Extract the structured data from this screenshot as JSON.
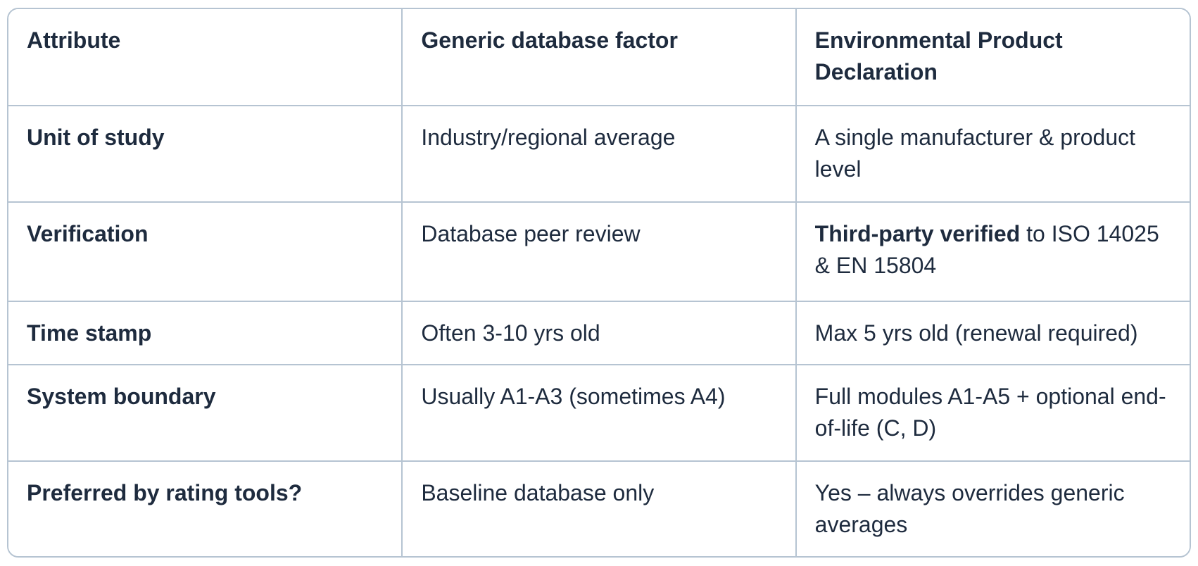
{
  "table": {
    "colors": {
      "text": "#1e2b3e",
      "border": "#b6c4d2",
      "background": "#ffffff"
    },
    "columns": [
      {
        "label": "Attribute"
      },
      {
        "label": "Generic database factor"
      },
      {
        "label": "Environmental Product Declaration"
      }
    ],
    "rows": [
      {
        "attribute": "Unit of study",
        "generic": "Industry/regional average",
        "epd": "A single manufacturer & product level"
      },
      {
        "attribute": "Verification",
        "generic": "Database peer review",
        "epd_bold": "Third-party verified",
        "epd_rest": " to ISO 14025 & EN 15804"
      },
      {
        "attribute": "Time stamp",
        "generic": "Often 3-10 yrs old",
        "epd": "Max 5 yrs old (renewal required)"
      },
      {
        "attribute": "System boundary",
        "generic": "Usually A1-A3 (sometimes A4)",
        "epd": "Full modules A1-A5 + optional end-of-life (C, D)"
      },
      {
        "attribute": "Preferred by rating tools?",
        "generic": "Baseline database only",
        "epd": "Yes – always overrides generic averages"
      }
    ]
  }
}
